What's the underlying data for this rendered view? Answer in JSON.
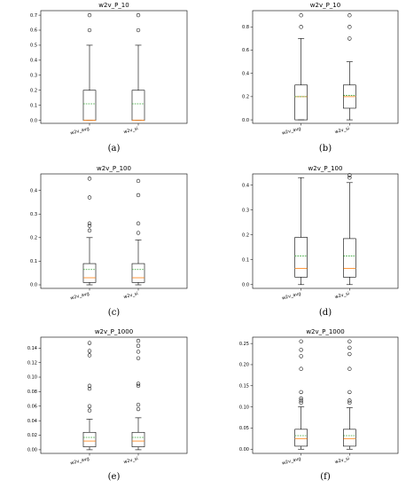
{
  "chart_data": [
    {
      "type": "box",
      "label": "(a)",
      "title": "w2v_P_10",
      "categories": [
        "w2v_avg",
        "w2v_si"
      ],
      "ylim": [
        -0.02,
        0.73
      ],
      "yticks": [
        0.0,
        0.1,
        0.2,
        0.3,
        0.4,
        0.5,
        0.6,
        0.7
      ],
      "tick_labels": [
        "0.0",
        "0.1",
        "0.2",
        "0.3",
        "0.4",
        "0.5",
        "0.6",
        "0.7"
      ],
      "boxes": [
        {
          "whislo": 0.0,
          "q1": 0.0,
          "med": 0.0,
          "q3": 0.2,
          "whishi": 0.5,
          "mean": 0.11,
          "fliers": [
            0.6,
            0.7
          ]
        },
        {
          "whislo": 0.0,
          "q1": 0.0,
          "med": 0.0,
          "q3": 0.2,
          "whishi": 0.5,
          "mean": 0.11,
          "fliers": [
            0.6,
            0.7
          ]
        }
      ]
    },
    {
      "type": "box",
      "label": "(b)",
      "title": "w2v_P_10",
      "categories": [
        "w2v_avg",
        "w2v_si"
      ],
      "ylim": [
        -0.03,
        0.94
      ],
      "yticks": [
        0.0,
        0.2,
        0.4,
        0.6,
        0.8
      ],
      "tick_labels": [
        "0.0",
        "0.2",
        "0.4",
        "0.6",
        "0.8"
      ],
      "boxes": [
        {
          "whislo": 0.0,
          "q1": 0.0,
          "med": 0.2,
          "q3": 0.3,
          "whishi": 0.7,
          "mean": 0.2,
          "fliers": [
            0.8,
            0.9
          ]
        },
        {
          "whislo": 0.0,
          "q1": 0.1,
          "med": 0.2,
          "q3": 0.3,
          "whishi": 0.5,
          "mean": 0.21,
          "fliers": [
            0.7,
            0.8,
            0.9
          ]
        }
      ]
    },
    {
      "type": "box",
      "label": "(c)",
      "title": "w2v_P_100",
      "categories": [
        "w2v_avg",
        "w2v_si"
      ],
      "ylim": [
        -0.015,
        0.47
      ],
      "yticks": [
        0.0,
        0.1,
        0.2,
        0.3,
        0.4
      ],
      "tick_labels": [
        "0.0",
        "0.1",
        "0.2",
        "0.3",
        "0.4"
      ],
      "boxes": [
        {
          "whislo": 0.0,
          "q1": 0.01,
          "med": 0.03,
          "q3": 0.09,
          "whishi": 0.2,
          "mean": 0.065,
          "fliers": [
            0.23,
            0.25,
            0.26,
            0.37,
            0.45
          ]
        },
        {
          "whislo": 0.0,
          "q1": 0.01,
          "med": 0.03,
          "q3": 0.09,
          "whishi": 0.19,
          "mean": 0.065,
          "fliers": [
            0.22,
            0.26,
            0.38,
            0.44
          ]
        }
      ]
    },
    {
      "type": "box",
      "label": "(d)",
      "title": "w2v_P_100",
      "categories": [
        "w2v_avg",
        "w2v_si"
      ],
      "ylim": [
        -0.015,
        0.445
      ],
      "yticks": [
        0.0,
        0.1,
        0.2,
        0.3,
        0.4
      ],
      "tick_labels": [
        "0.0",
        "0.1",
        "0.2",
        "0.3",
        "0.4"
      ],
      "boxes": [
        {
          "whislo": 0.0,
          "q1": 0.03,
          "med": 0.065,
          "q3": 0.19,
          "whishi": 0.43,
          "mean": 0.115,
          "fliers": []
        },
        {
          "whislo": 0.0,
          "q1": 0.03,
          "med": 0.065,
          "q3": 0.185,
          "whishi": 0.41,
          "mean": 0.115,
          "fliers": [
            0.43,
            0.44
          ]
        }
      ]
    },
    {
      "type": "box",
      "label": "(e)",
      "title": "w2v_P_1000",
      "categories": [
        "w2v_avg",
        "w2v_si"
      ],
      "ylim": [
        -0.005,
        0.155
      ],
      "yticks": [
        0.0,
        0.02,
        0.04,
        0.06,
        0.08,
        0.1,
        0.12,
        0.14
      ],
      "tick_labels": [
        "0.00",
        "0.02",
        "0.04",
        "0.06",
        "0.08",
        "0.10",
        "0.12",
        "0.14"
      ],
      "boxes": [
        {
          "whislo": 0.0,
          "q1": 0.004,
          "med": 0.012,
          "q3": 0.024,
          "whishi": 0.042,
          "mean": 0.017,
          "fliers": [
            0.054,
            0.06,
            0.084,
            0.088,
            0.13,
            0.136,
            0.147
          ]
        },
        {
          "whislo": 0.0,
          "q1": 0.004,
          "med": 0.012,
          "q3": 0.024,
          "whishi": 0.044,
          "mean": 0.017,
          "fliers": [
            0.056,
            0.062,
            0.088,
            0.091,
            0.126,
            0.135,
            0.143,
            0.15
          ]
        }
      ]
    },
    {
      "type": "box",
      "label": "(f)",
      "title": "w2v_P_1000",
      "categories": [
        "w2v_avg",
        "w2v_si"
      ],
      "ylim": [
        -0.01,
        0.265
      ],
      "yticks": [
        0.0,
        0.05,
        0.1,
        0.15,
        0.2,
        0.25
      ],
      "tick_labels": [
        "0.00",
        "0.05",
        "0.10",
        "0.15",
        "0.20",
        "0.25"
      ],
      "boxes": [
        {
          "whislo": 0.0,
          "q1": 0.007,
          "med": 0.025,
          "q3": 0.047,
          "whishi": 0.1,
          "mean": 0.032,
          "fliers": [
            0.11,
            0.115,
            0.12,
            0.135,
            0.19,
            0.22,
            0.235,
            0.255
          ]
        },
        {
          "whislo": 0.0,
          "q1": 0.007,
          "med": 0.025,
          "q3": 0.047,
          "whishi": 0.098,
          "mean": 0.032,
          "fliers": [
            0.11,
            0.115,
            0.135,
            0.19,
            0.225,
            0.24,
            0.255
          ]
        }
      ]
    }
  ],
  "colors": {
    "box": "#000000",
    "median": "#ff7f0e",
    "mean": "#2ca02c",
    "flier_edge": "#000000",
    "background": "#ffffff"
  }
}
